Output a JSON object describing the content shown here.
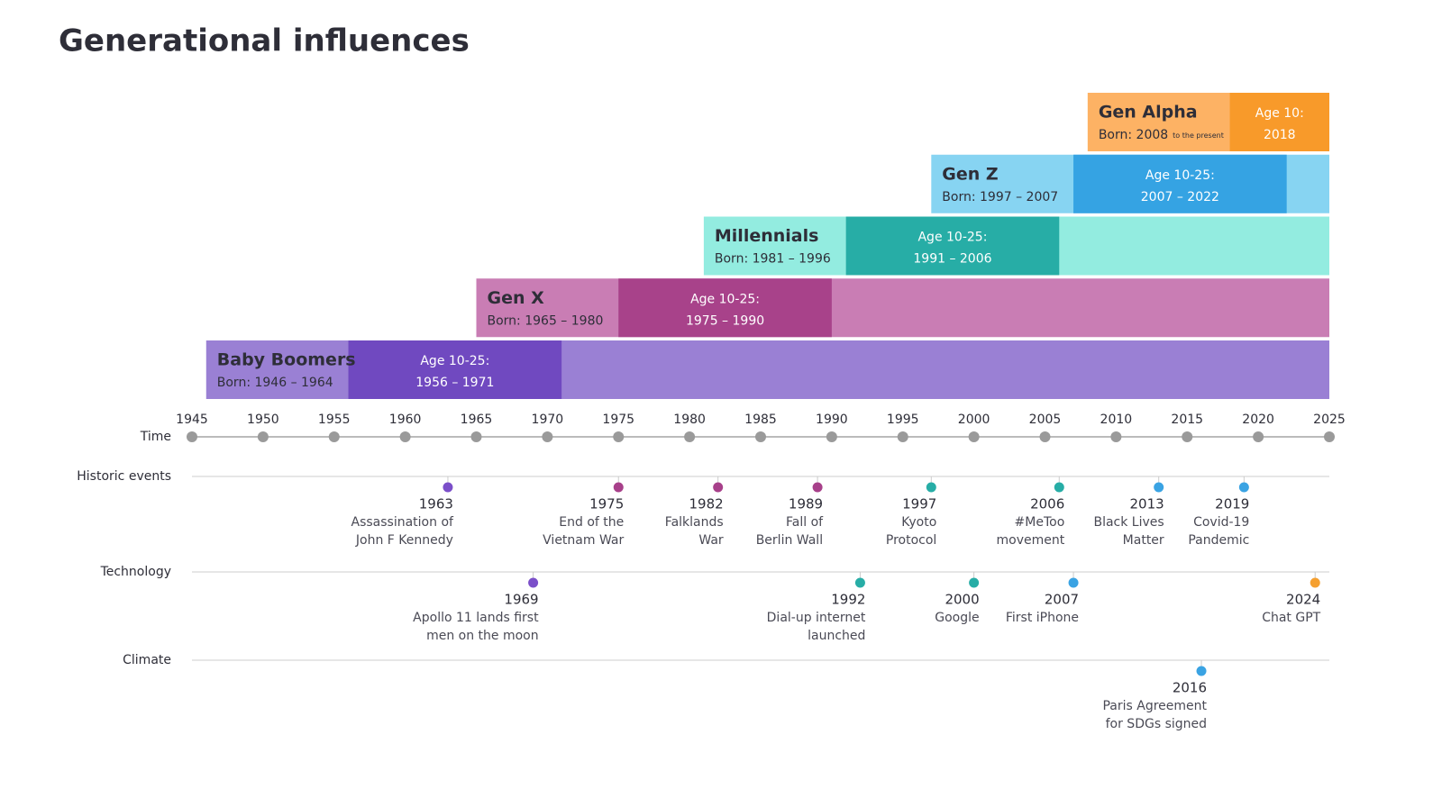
{
  "chart_data": {
    "type": "timeline",
    "title": "Generational influences",
    "xlim": [
      1945,
      2025
    ],
    "xticks": [
      1945,
      1950,
      1955,
      1960,
      1965,
      1970,
      1975,
      1980,
      1985,
      1990,
      1995,
      2000,
      2005,
      2010,
      2015,
      2020,
      2025
    ],
    "axis_label": "Time",
    "generations": [
      {
        "name": "Baby Boomers",
        "born_label": "Born: 1946 – 1964",
        "born_start": 1946,
        "age_label": "Age 10-25:",
        "age_range": "1956 – 1971",
        "age_start": 1956,
        "age_end": 1971,
        "color": "#9a80d4",
        "age_color": "#7049c0"
      },
      {
        "name": "Gen X",
        "born_label": "Born: 1965 – 1980",
        "born_start": 1965,
        "age_label": "Age 10-25:",
        "age_range": "1975 – 1990",
        "age_start": 1975,
        "age_end": 1990,
        "color": "#c97db4",
        "age_color": "#a8428a"
      },
      {
        "name": "Millennials",
        "born_label": "Born: 1981 – 1996",
        "born_start": 1981,
        "age_label": "Age 10-25:",
        "age_range": "1991 – 2006",
        "age_start": 1991,
        "age_end": 2006,
        "color": "#93ece0",
        "age_color": "#27ada6"
      },
      {
        "name": "Gen Z",
        "born_label": "Born: 1997 – 2007",
        "born_start": 1997,
        "age_label": "Age 10-25:",
        "age_range": "2007 – 2022",
        "age_start": 2007,
        "age_end": 2022,
        "color": "#87d4f2",
        "age_color": "#35a3e3"
      },
      {
        "name": "Gen Alpha",
        "born_label": "Born: 2008",
        "born_note": "to the present",
        "born_start": 2008,
        "age_label": "Age 10:",
        "age_range": "2018",
        "age_start": 2018,
        "color": "#fdb264",
        "age_color": "#f89a2a"
      }
    ],
    "event_rows": [
      {
        "name": "Historic events",
        "items": [
          {
            "year": 1963,
            "lines": [
              "Assassination of",
              "John F Kennedy"
            ],
            "color": "#7b4fc9"
          },
          {
            "year": 1975,
            "lines": [
              "End of the",
              "Vietnam War"
            ],
            "color": "#a7408a"
          },
          {
            "year": 1982,
            "lines": [
              "Falklands",
              "War"
            ],
            "color": "#a7408a"
          },
          {
            "year": 1989,
            "lines": [
              "Fall of",
              "Berlin Wall"
            ],
            "color": "#a7408a"
          },
          {
            "year": 1997,
            "lines": [
              "Kyoto",
              "Protocol"
            ],
            "color": "#27ada6"
          },
          {
            "year": 2006,
            "lines": [
              "#MeToo",
              "movement"
            ],
            "color": "#27ada6"
          },
          {
            "year": 2013,
            "lines": [
              "Black Lives",
              "Matter"
            ],
            "color": "#3aa3e3"
          },
          {
            "year": 2019,
            "lines": [
              "Covid-19",
              "Pandemic"
            ],
            "color": "#3aa3e3"
          }
        ]
      },
      {
        "name": "Technology",
        "items": [
          {
            "year": 1969,
            "lines": [
              "Apollo 11 lands first",
              "men on the moon"
            ],
            "color": "#7b4fc9"
          },
          {
            "year": 1992,
            "lines": [
              "Dial-up internet",
              "launched"
            ],
            "color": "#27ada6"
          },
          {
            "year": 2000,
            "lines": [
              "Google"
            ],
            "color": "#27ada6"
          },
          {
            "year": 2007,
            "lines": [
              "First iPhone"
            ],
            "color": "#3aa3e3"
          },
          {
            "year": 2024,
            "lines": [
              "Chat GPT"
            ],
            "color": "#f5a030"
          }
        ]
      },
      {
        "name": "Climate",
        "items": [
          {
            "year": 2016,
            "lines": [
              "Paris Agreement",
              "for SDGs signed"
            ],
            "color": "#3aa3e3"
          }
        ]
      }
    ]
  }
}
